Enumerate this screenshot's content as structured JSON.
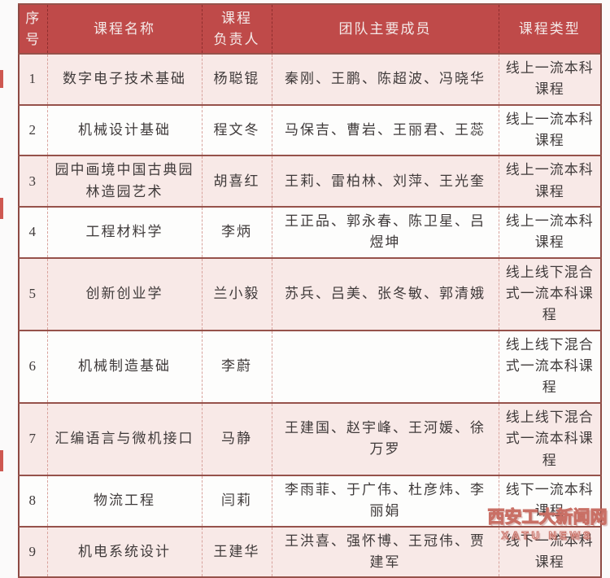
{
  "table": {
    "headers": {
      "no": "序\n号",
      "course": "课程名称",
      "leader": "课程\n负责人",
      "members": "团队主要成员",
      "type": "课程类型"
    },
    "rows": [
      {
        "no": "1",
        "course": "数字电子技术基础",
        "leader": "杨聪锟",
        "members": "秦刚、王鹏、陈超波、冯晓华",
        "type": "线上一流本科课程"
      },
      {
        "no": "2",
        "course": "机械设计基础",
        "leader": "程文冬",
        "members": "马保吉、曹岩、王丽君、王蕊",
        "type": "线上一流本科课程"
      },
      {
        "no": "3",
        "course": "园中画境中国古典园林造园艺术",
        "leader": "胡喜红",
        "members": "王莉、雷柏林、刘萍、王光奎",
        "type": "线上一流本科课程"
      },
      {
        "no": "4",
        "course": "工程材料学",
        "leader": "李炳",
        "members": "王正品、郭永春、陈卫星、吕煜坤",
        "type": "线上一流本科课程"
      },
      {
        "no": "5",
        "course": "创新创业学",
        "leader": "兰小毅",
        "members": "苏兵、吕美、张冬敏、郭清娥",
        "type": "线上线下混合式一流本科课程"
      },
      {
        "no": "6",
        "course": "机械制造基础",
        "leader": "李蔚",
        "members": "",
        "type": "线上线下混合式一流本科课程"
      },
      {
        "no": "7",
        "course": "汇编语言与微机接口",
        "leader": "马静",
        "members": "王建国、赵宇峰、王河媛、徐万罗",
        "type": "线上线下混合式一流本科课程"
      },
      {
        "no": "8",
        "course": "物流工程",
        "leader": "闫莉",
        "members": "李雨菲、于广伟、杜彦炜、李丽娟",
        "type": "线下一流本科课程"
      },
      {
        "no": "9",
        "course": "机电系统设计",
        "leader": "王建华",
        "members": "王洪喜、强怀博、王冠伟、贾建军",
        "type": "线下一流本科课程"
      }
    ]
  },
  "watermark": {
    "cn": "西安工大新闻网",
    "en": "XATU NEWS"
  },
  "colors": {
    "header_bg": "#bf4a49",
    "header_text": "#f4e9e8",
    "row_odd_bg": "#f8e9e7",
    "row_even_bg": "#fdfdfc",
    "border_dark": "#96524b",
    "border_dashed": "#d8a29c",
    "body_text": "#3f3a3a"
  }
}
